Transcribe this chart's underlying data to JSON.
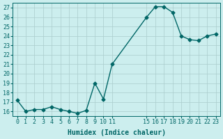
{
  "x": [
    0,
    1,
    2,
    3,
    4,
    5,
    6,
    7,
    8,
    9,
    10,
    11,
    15,
    16,
    17,
    18,
    19,
    20,
    21,
    22,
    23
  ],
  "y": [
    17.2,
    16.0,
    16.2,
    16.2,
    16.5,
    16.2,
    16.0,
    15.8,
    16.1,
    19.0,
    17.3,
    21.0,
    26.0,
    27.1,
    27.1,
    26.5,
    24.0,
    23.6,
    23.5,
    24.0,
    24.2
  ],
  "xlabel": "Humidex (Indice chaleur)",
  "ylim": [
    15.5,
    27.5
  ],
  "xlim": [
    -0.5,
    23.5
  ],
  "yticks": [
    16,
    17,
    18,
    19,
    20,
    21,
    22,
    23,
    24,
    25,
    26,
    27
  ],
  "xticks": [
    0,
    1,
    2,
    3,
    4,
    5,
    6,
    7,
    8,
    9,
    10,
    11,
    15,
    16,
    17,
    18,
    19,
    20,
    21,
    22,
    23
  ],
  "xtick_labels": [
    "0",
    "1",
    "2",
    "3",
    "4",
    "5",
    "6",
    "7",
    "8",
    "9",
    "10",
    "11",
    "15",
    "16",
    "17",
    "18",
    "19",
    "20",
    "21",
    "22",
    "23"
  ],
  "line_color": "#006666",
  "marker_color": "#006666",
  "bg_color": "#cceeee",
  "grid_color": "#aacccc",
  "text_color": "#006666"
}
